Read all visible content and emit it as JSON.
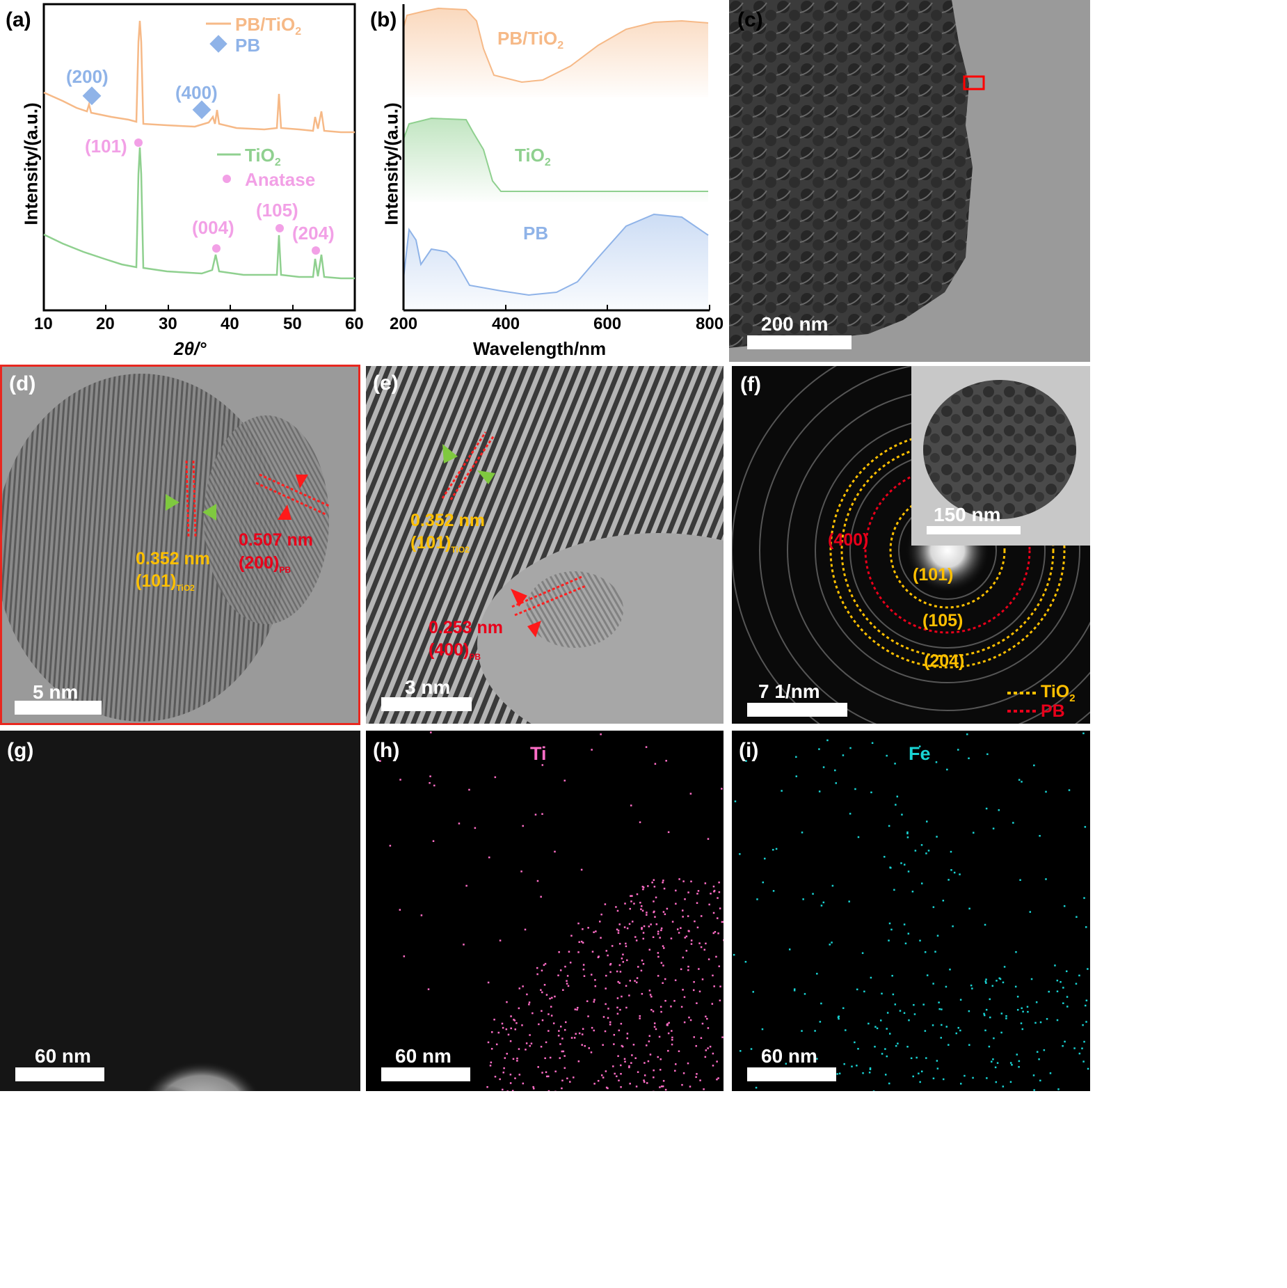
{
  "panels": {
    "a": {
      "label": "(a)",
      "xlabel": "2θ/°",
      "ylabel": "Intensity/(a.u.)",
      "xticks": [
        "10",
        "20",
        "30",
        "40",
        "50",
        "60"
      ],
      "legend": [
        {
          "name": "PB/TiO2",
          "color": "#f6b987"
        },
        {
          "name": "PB",
          "color": "#8fb3e8"
        },
        {
          "name": "TiO2",
          "color": "#8fd08f"
        },
        {
          "name": "Anatase",
          "color": "#f2a0e6"
        }
      ],
      "pb_peaks": [
        "(200)",
        "(400)"
      ],
      "anatase_peaks": [
        "(101)",
        "(004)",
        "(105)",
        "(204)"
      ]
    },
    "b": {
      "label": "(b)",
      "xlabel": "Wavelength/nm",
      "ylabel": "Intensity/(a.u.)",
      "xticks": [
        "200",
        "400",
        "600",
        "800"
      ],
      "curve_labels": [
        "PB/TiO2",
        "TiO2",
        "PB"
      ]
    },
    "c": {
      "label": "(c)",
      "scalebar": "200 nm"
    },
    "d": {
      "label": "(d)",
      "scalebar": "5 nm",
      "d1": "0.352 nm",
      "p1": "(101)",
      "s1": "TiO2",
      "d2": "0.507 nm",
      "p2": "(200)",
      "s2": "PB"
    },
    "e": {
      "label": "(e)",
      "scalebar": "3 nm",
      "d1": "0.352 nm",
      "p1": "(101)",
      "s1": "TiO2",
      "d2": "0.253 nm",
      "p2": "(400)",
      "s2": "PB"
    },
    "f": {
      "label": "(f)",
      "scalebar": "7 1/nm",
      "inset_scalebar": "150 nm",
      "rings": [
        "(400)",
        "(101)",
        "(105)",
        "(204)"
      ],
      "legend": [
        "TiO2",
        "PB"
      ]
    },
    "g": {
      "label": "(g)",
      "scalebar": "60 nm"
    },
    "h": {
      "label": "(h)",
      "scalebar": "60 nm",
      "element": "Ti",
      "color": "#ff6ec7"
    },
    "i": {
      "label": "(i)",
      "scalebar": "60 nm",
      "element": "Fe",
      "color": "#19d4d4"
    }
  },
  "chart_data": [
    {
      "type": "line",
      "title": "",
      "xlabel": "2θ/°",
      "ylabel": "Intensity/(a.u.)",
      "xlim": [
        10,
        60
      ],
      "series": [
        {
          "name": "PB/TiO2",
          "x": [
            10,
            17.5,
            25.3,
            35.4,
            37.8,
            48.0,
            53.9,
            55.1,
            60
          ],
          "y": [
            0.72,
            0.7,
            1.0,
            0.67,
            0.69,
            0.75,
            0.64,
            0.66,
            0.6
          ]
        },
        {
          "name": "TiO2",
          "x": [
            10,
            25.3,
            37.8,
            48.0,
            53.9,
            55.1,
            60
          ],
          "y": [
            0.35,
            0.82,
            0.12,
            0.22,
            0.11,
            0.11,
            0.0
          ]
        }
      ]
    },
    {
      "type": "area",
      "title": "",
      "xlabel": "Wavelength/nm",
      "ylabel": "Intensity/(a.u.)",
      "xlim": [
        200,
        800
      ],
      "series": [
        {
          "name": "PB/TiO2",
          "x": [
            200,
            250,
            320,
            380,
            450,
            550,
            650,
            800
          ],
          "y": [
            0.95,
            1.0,
            0.99,
            0.76,
            0.75,
            0.88,
            0.98,
            0.99
          ]
        },
        {
          "name": "TiO2",
          "x": [
            200,
            250,
            320,
            350,
            380,
            450,
            800
          ],
          "y": [
            0.68,
            0.71,
            0.7,
            0.52,
            0.37,
            0.37,
            0.37
          ]
        },
        {
          "name": "PB",
          "x": [
            210,
            260,
            280,
            330,
            450,
            550,
            690,
            800
          ],
          "y": [
            0.24,
            0.18,
            0.18,
            0.04,
            0.0,
            0.06,
            0.31,
            0.23
          ]
        }
      ]
    }
  ]
}
